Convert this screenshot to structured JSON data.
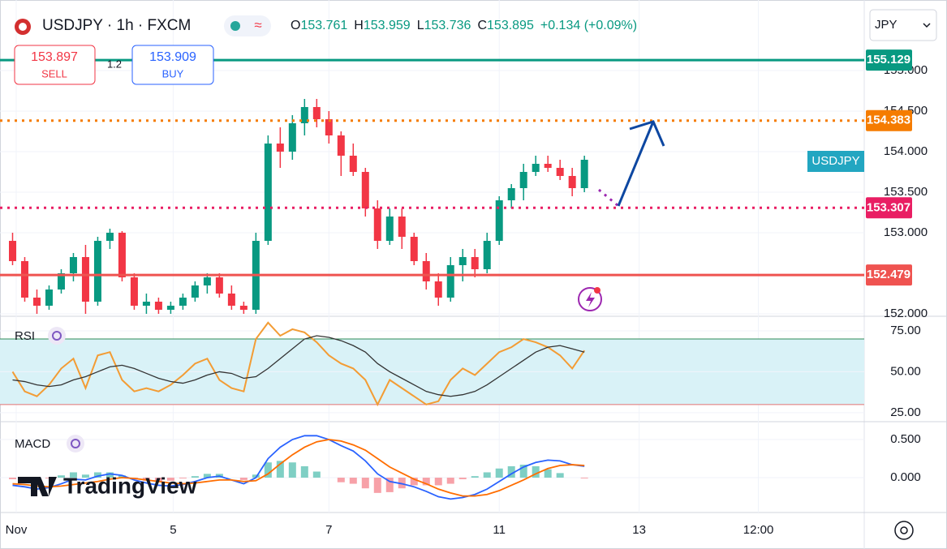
{
  "header": {
    "symbol": "USDJPY · 1h · FXCM",
    "o_label": "O",
    "o": "153.761",
    "h_label": "H",
    "h": "153.959",
    "l_label": "L",
    "l": "153.736",
    "c_label": "C",
    "c": "153.895",
    "change": "+0.134 (+0.09%)",
    "currency": "JPY"
  },
  "trade": {
    "sell_price": "153.897",
    "sell": "SELL",
    "spread": "1.2",
    "buy_price": "153.909",
    "buy": "BUY"
  },
  "symbol_tag": "USDJPY",
  "logo": "TradingView",
  "chart_data": [
    {
      "type": "candlestick",
      "xlim": [
        0,
        70.5
      ],
      "xticks": [
        {
          "value": 0.8,
          "label": "Nov"
        },
        {
          "value": 13.7,
          "label": "5"
        },
        {
          "value": 26.5,
          "label": "7"
        },
        {
          "value": 40.5,
          "label": "11"
        },
        {
          "value": 52,
          "label": "13"
        },
        {
          "value": 61.8,
          "label": "12:00"
        }
      ],
      "ylim": [
        152.0,
        155.82
      ],
      "yticks": [
        {
          "value": 152,
          "label": "152.000"
        },
        {
          "value": 153,
          "label": "153.000"
        },
        {
          "value": 153.5,
          "label": "153.500"
        },
        {
          "value": 154,
          "label": "154.000"
        },
        {
          "value": 154.5,
          "label": "154.500"
        },
        {
          "value": 155,
          "label": "155.000"
        }
      ],
      "up_color": "#089981",
      "down_color": "#f23645",
      "open": [
        152.9,
        152.65,
        152.2,
        152.1,
        152.3,
        152.5,
        152.7,
        152.15,
        152.9,
        153.0,
        152.45,
        152.1,
        152.15,
        152.05,
        152.1,
        152.2,
        152.35,
        152.45,
        152.25,
        152.1,
        152.05,
        152.9,
        154.1,
        154.0,
        154.35,
        154.55,
        154.4,
        154.2,
        153.95,
        153.75,
        153.3,
        152.9,
        153.2,
        152.95,
        152.65,
        152.4,
        152.2,
        152.6,
        152.7,
        152.55,
        152.9,
        153.4,
        153.55,
        153.75,
        153.85,
        153.8,
        153.7,
        153.55
      ],
      "high": [
        153.0,
        152.7,
        152.3,
        152.35,
        152.55,
        152.75,
        152.85,
        152.95,
        153.05,
        153.02,
        152.5,
        152.25,
        152.2,
        152.15,
        152.25,
        152.4,
        152.5,
        152.5,
        152.35,
        152.15,
        153.0,
        154.2,
        154.3,
        154.45,
        154.65,
        154.65,
        154.5,
        154.25,
        154.1,
        153.8,
        153.4,
        153.3,
        153.3,
        153.0,
        152.75,
        152.5,
        152.7,
        152.8,
        152.8,
        153.0,
        153.45,
        153.6,
        153.85,
        153.95,
        153.95,
        153.9,
        153.8,
        153.95
      ],
      "low": [
        152.6,
        152.15,
        152.0,
        152.05,
        152.25,
        152.4,
        152.0,
        152.1,
        152.8,
        152.4,
        152.05,
        152.0,
        152.0,
        152.0,
        152.05,
        152.15,
        152.25,
        152.2,
        152.05,
        152.0,
        152.0,
        152.85,
        153.8,
        153.9,
        154.2,
        154.3,
        154.1,
        153.7,
        153.7,
        153.2,
        152.8,
        152.85,
        152.8,
        152.6,
        152.3,
        152.1,
        152.15,
        152.4,
        152.45,
        152.5,
        152.85,
        153.3,
        153.4,
        153.7,
        153.75,
        153.65,
        153.45,
        153.5
      ],
      "close": [
        152.65,
        152.2,
        152.1,
        152.3,
        152.5,
        152.7,
        152.15,
        152.9,
        153.0,
        152.45,
        152.1,
        152.15,
        152.05,
        152.1,
        152.2,
        152.35,
        152.45,
        152.25,
        152.1,
        152.05,
        152.9,
        154.1,
        154.0,
        154.35,
        154.55,
        154.4,
        154.2,
        153.95,
        153.75,
        153.3,
        152.9,
        153.2,
        152.95,
        152.65,
        152.4,
        152.2,
        152.6,
        152.7,
        152.55,
        152.9,
        153.4,
        153.55,
        153.75,
        153.85,
        153.8,
        153.7,
        153.55,
        153.9
      ],
      "levels": [
        {
          "value": 155.129,
          "color": "#089981",
          "style": "solid"
        },
        {
          "value": 154.383,
          "color": "#f57c00",
          "style": "dotted"
        },
        {
          "value": 153.307,
          "color": "#e91e63",
          "style": "dotted"
        },
        {
          "value": 152.479,
          "color": "#ef5350",
          "style": "solid"
        }
      ]
    },
    {
      "type": "line",
      "title": "RSI",
      "ylim": [
        20.5,
        82.9
      ],
      "yticks": [
        {
          "value": 25,
          "label": "25.00"
        },
        {
          "value": 50,
          "label": "50.00"
        },
        {
          "value": 75,
          "label": "75.00"
        }
      ],
      "band": [
        30,
        70
      ],
      "series": [
        {
          "color": "#f39c34",
          "values": [
            50,
            38,
            35,
            42,
            52,
            58,
            40,
            60,
            62,
            45,
            38,
            40,
            38,
            42,
            48,
            55,
            58,
            45,
            40,
            38,
            70,
            80,
            72,
            76,
            74,
            68,
            60,
            55,
            52,
            45,
            30,
            45,
            40,
            35,
            30,
            32,
            45,
            52,
            48,
            55,
            62,
            65,
            70,
            68,
            65,
            60,
            52,
            63
          ]
        },
        {
          "color": "#333333",
          "values": [
            45,
            44,
            42,
            41,
            42,
            45,
            47,
            50,
            53,
            54,
            52,
            49,
            46,
            44,
            43,
            45,
            48,
            50,
            49,
            46,
            47,
            52,
            58,
            64,
            70,
            72,
            71,
            69,
            66,
            62,
            55,
            50,
            46,
            42,
            38,
            36,
            35,
            36,
            38,
            42,
            47,
            52,
            57,
            62,
            65,
            66,
            64,
            62
          ]
        }
      ]
    },
    {
      "type": "macd",
      "title": "MACD",
      "ylim": [
        -0.457,
        0.713
      ],
      "yticks": [
        {
          "value": 0,
          "label": "0.000"
        },
        {
          "value": 0.5,
          "label": "0.500"
        }
      ],
      "histogram": [
        -0.02,
        -0.03,
        -0.04,
        -0.01,
        0.03,
        0.07,
        0.04,
        0.07,
        0.07,
        0.03,
        -0.02,
        -0.04,
        -0.05,
        -0.04,
        -0.01,
        0.02,
        0.05,
        0.05,
        0.0,
        -0.03,
        0.04,
        0.2,
        0.22,
        0.2,
        0.15,
        0.08,
        0.0,
        -0.06,
        -0.08,
        -0.14,
        -0.2,
        -0.19,
        -0.14,
        -0.1,
        -0.1,
        -0.1,
        -0.08,
        -0.02,
        0.02,
        0.07,
        0.12,
        0.15,
        0.17,
        0.15,
        0.11,
        0.06,
        0.0,
        -0.01
      ],
      "hist_up_color": "#7fcfc4",
      "hist_down_color": "#f7a1a8",
      "series": [
        {
          "color": "#2962ff",
          "values": [
            -0.1,
            -0.12,
            -0.15,
            -0.13,
            -0.08,
            -0.02,
            -0.03,
            0.02,
            0.05,
            0.03,
            -0.03,
            -0.07,
            -0.1,
            -0.11,
            -0.09,
            -0.05,
            0.0,
            0.02,
            -0.03,
            -0.08,
            0.0,
            0.25,
            0.4,
            0.5,
            0.55,
            0.55,
            0.5,
            0.42,
            0.35,
            0.22,
            0.05,
            -0.05,
            -0.08,
            -0.12,
            -0.18,
            -0.25,
            -0.28,
            -0.26,
            -0.22,
            -0.15,
            -0.05,
            0.05,
            0.14,
            0.2,
            0.23,
            0.22,
            0.17,
            0.15
          ]
        },
        {
          "color": "#ff6d00",
          "values": [
            -0.08,
            -0.09,
            -0.11,
            -0.12,
            -0.11,
            -0.09,
            -0.07,
            -0.05,
            -0.02,
            0.0,
            -0.01,
            -0.03,
            -0.05,
            -0.07,
            -0.08,
            -0.07,
            -0.05,
            -0.03,
            -0.03,
            -0.05,
            -0.04,
            0.05,
            0.18,
            0.3,
            0.4,
            0.47,
            0.5,
            0.48,
            0.43,
            0.36,
            0.25,
            0.14,
            0.06,
            -0.02,
            -0.08,
            -0.15,
            -0.2,
            -0.24,
            -0.24,
            -0.22,
            -0.17,
            -0.1,
            -0.03,
            0.05,
            0.12,
            0.16,
            0.17,
            0.16
          ]
        }
      ]
    }
  ]
}
